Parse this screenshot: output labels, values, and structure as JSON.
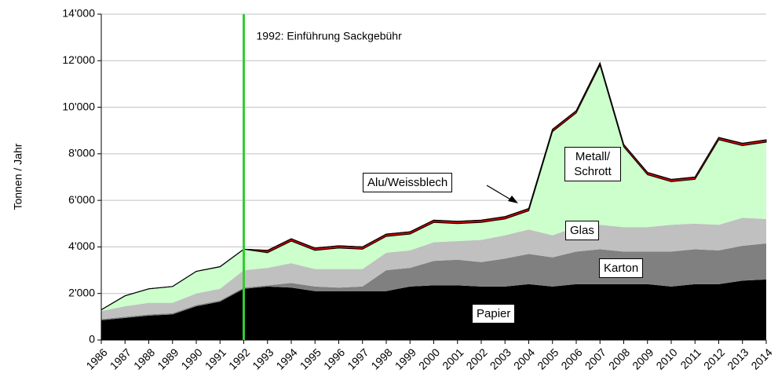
{
  "chart_data": {
    "type": "stacked_area",
    "y_label": "Tonnen / Jahr",
    "annotation": {
      "text": "1992: Einführung Sackgebühr",
      "x": 1992,
      "color": "#33cc33"
    },
    "x": [
      1986,
      1987,
      1988,
      1989,
      1990,
      1991,
      1992,
      1993,
      1994,
      1995,
      1996,
      1997,
      1998,
      1999,
      2000,
      2001,
      2002,
      2003,
      2004,
      2005,
      2006,
      2007,
      2008,
      2009,
      2010,
      2011,
      2012,
      2013,
      2014
    ],
    "xticks": [
      1986,
      1987,
      1988,
      1989,
      1990,
      1991,
      1992,
      1993,
      1994,
      1995,
      1996,
      1997,
      1998,
      1999,
      2000,
      2001,
      2002,
      2003,
      2004,
      2005,
      2006,
      2007,
      2008,
      2009,
      2010,
      2011,
      2012,
      2013,
      2014
    ],
    "xlim": [
      1986,
      2014
    ],
    "ylim": [
      0,
      14000
    ],
    "yticks": [
      0,
      {
        "value": 2000,
        "label": "2'000"
      },
      {
        "value": 4000,
        "label": "4'000"
      },
      {
        "value": 6000,
        "label": "6'000"
      },
      {
        "value": 8000,
        "label": "8'000"
      },
      {
        "value": 10000,
        "label": "10'000"
      },
      {
        "value": 12000,
        "label": "12'000"
      },
      {
        "value": 14000,
        "label": "14'000"
      }
    ],
    "series": [
      {
        "name": "Papier",
        "color": "#000000",
        "values": [
          850,
          950,
          1050,
          1100,
          1450,
          1650,
          2200,
          2300,
          2250,
          2100,
          2100,
          2100,
          2100,
          2300,
          2350,
          2350,
          2300,
          2300,
          2400,
          2300,
          2400,
          2400,
          2400,
          2400,
          2300,
          2400,
          2400,
          2550,
          2600
        ]
      },
      {
        "name": "Karton",
        "color": "#808080",
        "values": [
          50,
          50,
          50,
          50,
          50,
          50,
          50,
          50,
          200,
          200,
          150,
          200,
          900,
          800,
          1050,
          1100,
          1050,
          1200,
          1300,
          1250,
          1400,
          1500,
          1400,
          1400,
          1500,
          1500,
          1450,
          1500,
          1550
        ]
      },
      {
        "name": "Glas",
        "color": "#c0c0c0",
        "values": [
          350,
          450,
          500,
          450,
          500,
          500,
          750,
          750,
          850,
          750,
          800,
          750,
          750,
          750,
          800,
          800,
          950,
          1000,
          1050,
          950,
          1050,
          1050,
          1050,
          1050,
          1150,
          1100,
          1100,
          1200,
          1050
        ]
      },
      {
        "name": "Metall/Schrott",
        "color": "#ccffcc",
        "values": [
          50,
          450,
          600,
          700,
          950,
          950,
          900,
          650,
          950,
          800,
          900,
          850,
          700,
          700,
          850,
          750,
          750,
          700,
          800,
          4450,
          4900,
          6850,
          3450,
          2250,
          1850,
          1900,
          3650,
          3100,
          3300
        ]
      },
      {
        "name": "Alu/Weissblech",
        "color": "#cc0000",
        "values": [
          0,
          0,
          0,
          0,
          0,
          0,
          0,
          100,
          100,
          100,
          100,
          100,
          100,
          100,
          100,
          100,
          100,
          100,
          100,
          100,
          100,
          100,
          100,
          100,
          100,
          100,
          100,
          100,
          100
        ]
      }
    ]
  }
}
